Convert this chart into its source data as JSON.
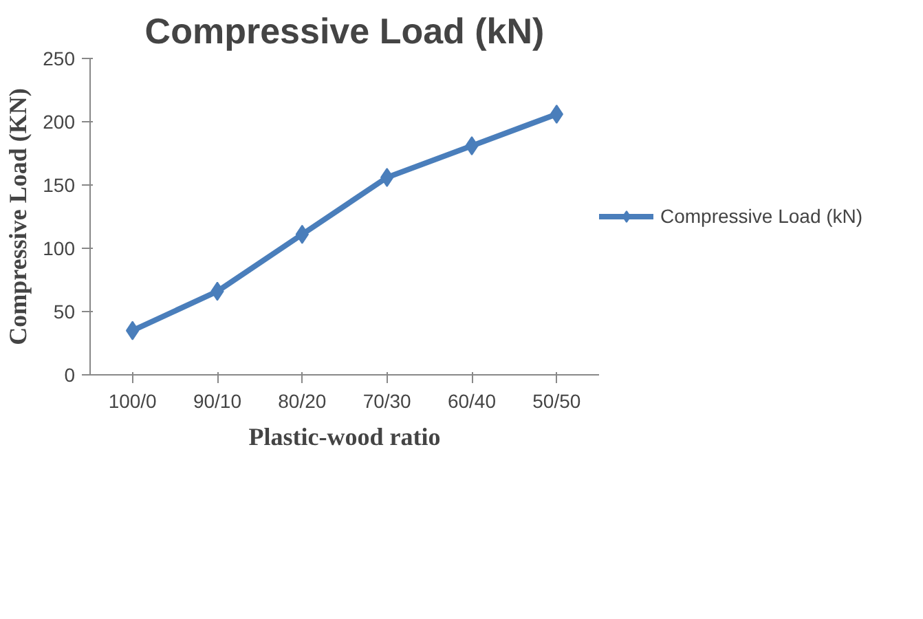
{
  "chart_data": {
    "type": "line",
    "title": "Compressive Load (kN)",
    "xlabel": "Plastic-wood ratio",
    "ylabel": "Compressive Load (KN)",
    "categories": [
      "100/0",
      "90/10",
      "80/20",
      "70/30",
      "60/40",
      "50/50"
    ],
    "series": [
      {
        "name": "Compressive Load (kN)",
        "color": "#4a7ebb",
        "values": [
          35,
          66,
          111,
          156,
          181,
          206
        ]
      }
    ],
    "ylim": [
      0,
      250
    ],
    "yticks": [
      0,
      50,
      100,
      150,
      200,
      250
    ],
    "grid": false,
    "legend": "right",
    "marker": "diamond",
    "line_style": "solid"
  }
}
